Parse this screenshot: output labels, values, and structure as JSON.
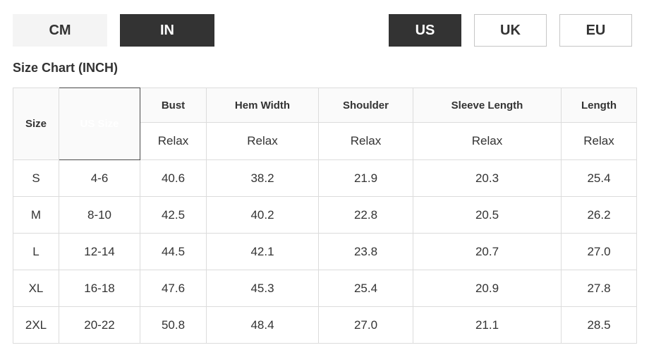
{
  "title": "Size Chart (INCH)",
  "unit_toggle": {
    "options": [
      {
        "label": "CM",
        "selected": false
      },
      {
        "label": "IN",
        "selected": true
      }
    ]
  },
  "region_toggle": {
    "options": [
      {
        "label": "US",
        "selected": true
      },
      {
        "label": "UK",
        "selected": false
      },
      {
        "label": "EU",
        "selected": false
      }
    ]
  },
  "table": {
    "corner_header": "Size",
    "us_size_header": "US Size",
    "measure_headers": [
      "Bust",
      "Hem Width",
      "Shoulder",
      "Sleeve Length",
      "Length"
    ],
    "fit_label": "Relax",
    "rows": [
      {
        "size": "S",
        "us_size": "4-6",
        "values": [
          "40.6",
          "38.2",
          "21.9",
          "20.3",
          "25.4"
        ]
      },
      {
        "size": "M",
        "us_size": "8-10",
        "values": [
          "42.5",
          "40.2",
          "22.8",
          "20.5",
          "26.2"
        ]
      },
      {
        "size": "L",
        "us_size": "12-14",
        "values": [
          "44.5",
          "42.1",
          "23.8",
          "20.7",
          "27.0"
        ]
      },
      {
        "size": "XL",
        "us_size": "16-18",
        "values": [
          "47.6",
          "45.3",
          "25.4",
          "20.9",
          "27.8"
        ]
      },
      {
        "size": "2XL",
        "us_size": "20-22",
        "values": [
          "50.8",
          "48.4",
          "27.0",
          "21.1",
          "28.5"
        ]
      }
    ]
  },
  "colors": {
    "selected_button_bg": "#333333",
    "selected_button_text": "#ffffff",
    "unit_unselected_bg": "#f4f4f4",
    "region_unselected_border": "#c6c6c6",
    "us_size_cell_bg": "#4a4a4a",
    "table_border": "#dcdcdc",
    "header_row_bg": "#fafafa",
    "text": "#333333"
  },
  "layout_cols": [
    65,
    115,
    94,
    159,
    134,
    210,
    107
  ]
}
